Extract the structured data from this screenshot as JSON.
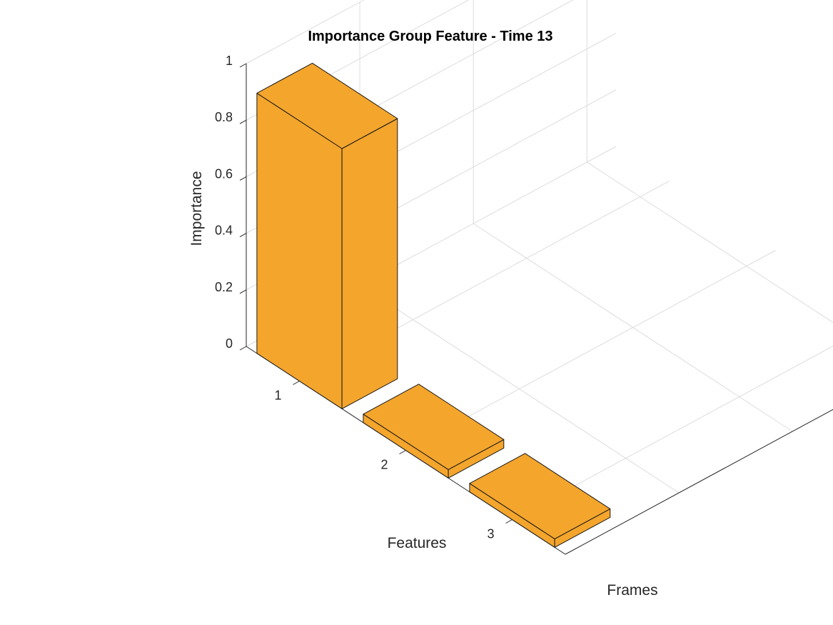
{
  "chart_data": {
    "type": "bar3",
    "title": "Importance Group Feature - Time 13",
    "xlabel": "Features",
    "ylabel": "Frames",
    "zlabel": "Importance",
    "categories": [
      "1",
      "2",
      "3"
    ],
    "values": [
      0.92,
      0.03,
      0.03
    ],
    "zlim": [
      0,
      1
    ],
    "zticks": [
      "0",
      "0.2",
      "0.4",
      "0.6",
      "0.8",
      "1"
    ],
    "grid": true,
    "bar_color": "#F4A52C"
  }
}
